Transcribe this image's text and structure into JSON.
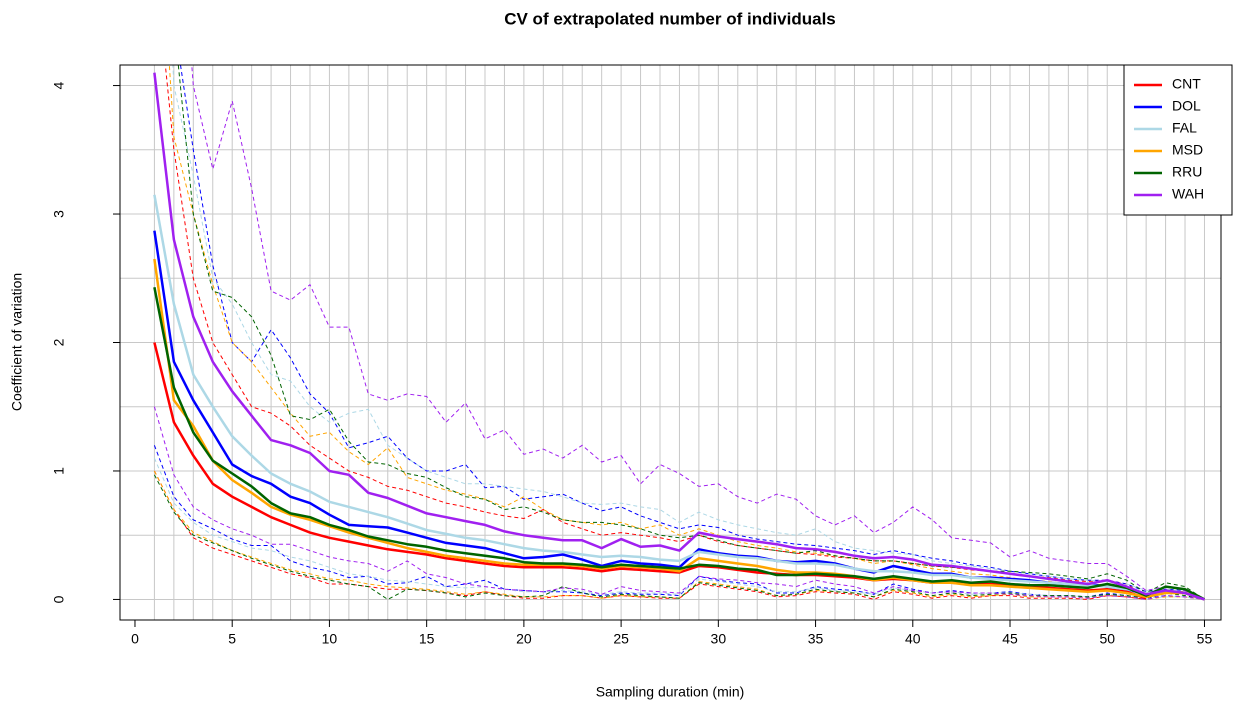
{
  "chart_data": {
    "type": "line",
    "title": "CV of extrapolated number of individuals",
    "x_label": "Sampling duration (min)",
    "y_label": "Coefficient of variation",
    "x": [
      1,
      2,
      3,
      4,
      5,
      6,
      7,
      8,
      9,
      10,
      11,
      12,
      13,
      14,
      15,
      16,
      17,
      18,
      19,
      20,
      21,
      22,
      23,
      24,
      25,
      26,
      27,
      28,
      29,
      30,
      31,
      32,
      33,
      34,
      35,
      36,
      37,
      38,
      39,
      40,
      41,
      42,
      43,
      44,
      45,
      46,
      47,
      48,
      49,
      50,
      51,
      52,
      53,
      54,
      55
    ],
    "xlim": [
      -0.77,
      55.85
    ],
    "ylim": [
      -0.16,
      4.16
    ],
    "xticks": [
      0,
      5,
      10,
      15,
      20,
      25,
      30,
      35,
      40,
      45,
      50,
      55
    ],
    "yticks": [
      0,
      1,
      2,
      3,
      4
    ],
    "ygrid": [
      0,
      0.5,
      1,
      1.5,
      2,
      2.5,
      3,
      3.5,
      4
    ],
    "grid": true,
    "legend": "topright",
    "series": [
      {
        "name": "CNT",
        "color": "#ff0000",
        "values": [
          2.0,
          1.38,
          1.12,
          0.9,
          0.8,
          0.72,
          0.64,
          0.58,
          0.52,
          0.48,
          0.45,
          0.42,
          0.39,
          0.37,
          0.35,
          0.32,
          0.3,
          0.28,
          0.26,
          0.25,
          0.25,
          0.25,
          0.24,
          0.22,
          0.24,
          0.23,
          0.22,
          0.21,
          0.26,
          0.25,
          0.23,
          0.21,
          0.2,
          0.19,
          0.19,
          0.18,
          0.17,
          0.15,
          0.16,
          0.15,
          0.13,
          0.13,
          0.12,
          0.12,
          0.11,
          0.1,
          0.09,
          0.08,
          0.07,
          0.08,
          0.06,
          0.01,
          null,
          null,
          null
        ],
        "upper": [
          5,
          3.5,
          2.5,
          2.0,
          1.75,
          1.5,
          1.45,
          1.35,
          1.2,
          1.1,
          1.0,
          0.95,
          0.88,
          0.85,
          0.8,
          0.75,
          0.72,
          0.68,
          0.65,
          0.63,
          0.7,
          0.6,
          0.55,
          0.5,
          0.52,
          0.5,
          0.48,
          0.45,
          0.5,
          0.45,
          0.42,
          0.4,
          0.38,
          0.36,
          0.35,
          0.33,
          0.32,
          0.3,
          0.3,
          0.28,
          0.26,
          0.25,
          0.23,
          0.22,
          0.2,
          0.18,
          0.17,
          0.15,
          0.14,
          0.15,
          0.12,
          0.02,
          null,
          null,
          null
        ],
        "lower": [
          1.0,
          0.7,
          0.48,
          0.4,
          0.35,
          0.3,
          0.25,
          0.2,
          0.17,
          0.12,
          0.12,
          0.1,
          0.08,
          0.08,
          0.07,
          0.05,
          0.03,
          0.06,
          0.03,
          0.01,
          0.01,
          0.03,
          0.03,
          0.01,
          0.03,
          0.02,
          0.01,
          0.01,
          0.12,
          0.1,
          0.08,
          0.06,
          0.02,
          0.03,
          0.06,
          0.05,
          0.04,
          0.0,
          0.06,
          0.04,
          0.01,
          0.03,
          0.01,
          0.03,
          0.03,
          0.01,
          0.01,
          0.01,
          0.0,
          0.03,
          0.02,
          0.0,
          null,
          null,
          null
        ]
      },
      {
        "name": "DOL",
        "color": "#0000ff",
        "values": [
          2.87,
          1.85,
          1.55,
          1.3,
          1.05,
          0.96,
          0.9,
          0.8,
          0.75,
          0.66,
          0.58,
          0.57,
          0.56,
          0.52,
          0.48,
          0.44,
          0.42,
          0.4,
          0.36,
          0.32,
          0.33,
          0.35,
          0.31,
          0.26,
          0.3,
          0.28,
          0.27,
          0.25,
          0.39,
          0.36,
          0.34,
          0.33,
          0.3,
          0.29,
          0.3,
          0.28,
          0.24,
          0.21,
          0.26,
          0.23,
          0.2,
          0.2,
          0.17,
          0.17,
          0.16,
          0.15,
          0.13,
          0.12,
          0.12,
          0.1,
          0.08,
          0.04,
          0.06,
          0.05,
          0.0
        ],
        "upper": [
          6,
          4.5,
          3.5,
          2.6,
          2.0,
          1.85,
          2.1,
          1.88,
          1.6,
          1.45,
          1.18,
          1.22,
          1.27,
          1.1,
          1.0,
          1.0,
          1.05,
          0.87,
          0.88,
          0.78,
          0.8,
          0.82,
          0.75,
          0.69,
          0.72,
          0.65,
          0.6,
          0.55,
          0.58,
          0.56,
          0.5,
          0.47,
          0.45,
          0.43,
          0.42,
          0.4,
          0.38,
          0.35,
          0.38,
          0.35,
          0.32,
          0.3,
          0.27,
          0.25,
          0.22,
          0.2,
          0.18,
          0.16,
          0.15,
          0.15,
          0.12,
          0.06,
          0.08,
          0.07,
          0.0
        ],
        "lower": [
          1.2,
          0.8,
          0.62,
          0.55,
          0.47,
          0.42,
          0.42,
          0.3,
          0.25,
          0.22,
          0.17,
          0.18,
          0.12,
          0.13,
          0.18,
          0.1,
          0.12,
          0.15,
          0.08,
          0.07,
          0.06,
          0.06,
          0.05,
          0.03,
          0.05,
          0.04,
          0.04,
          0.03,
          0.18,
          0.15,
          0.13,
          0.12,
          0.05,
          0.05,
          0.1,
          0.08,
          0.07,
          0.04,
          0.12,
          0.08,
          0.05,
          0.07,
          0.05,
          0.05,
          0.06,
          0.04,
          0.03,
          0.03,
          0.02,
          0.05,
          0.03,
          0.01,
          0.03,
          0.02,
          0.0
        ]
      },
      {
        "name": "FAL",
        "color": "#add8e6",
        "values": [
          3.15,
          2.3,
          1.75,
          1.5,
          1.27,
          1.12,
          0.98,
          0.9,
          0.84,
          0.76,
          0.72,
          0.68,
          0.64,
          0.59,
          0.54,
          0.51,
          0.48,
          0.46,
          0.43,
          0.4,
          0.38,
          0.37,
          0.35,
          0.33,
          0.34,
          0.33,
          0.31,
          0.3,
          0.37,
          0.35,
          0.33,
          0.32,
          0.3,
          0.28,
          0.28,
          0.27,
          0.24,
          0.22,
          0.22,
          0.21,
          0.19,
          0.19,
          0.17,
          0.16,
          0.15,
          0.14,
          0.13,
          0.12,
          0.11,
          0.1,
          0.08,
          0.05,
          0.06,
          0.05,
          0.0
        ],
        "upper": [
          7,
          4.0,
          3.3,
          2.5,
          2.3,
          2.0,
          1.75,
          1.7,
          1.5,
          1.38,
          1.45,
          1.48,
          1.2,
          1.1,
          1.0,
          0.95,
          0.9,
          0.9,
          0.88,
          0.86,
          0.84,
          0.8,
          0.75,
          0.74,
          0.75,
          0.72,
          0.7,
          0.6,
          0.68,
          0.62,
          0.58,
          0.55,
          0.52,
          0.5,
          0.55,
          0.45,
          0.4,
          0.38,
          0.36,
          0.35,
          0.3,
          0.28,
          0.26,
          0.24,
          0.22,
          0.2,
          0.18,
          0.16,
          0.15,
          0.14,
          0.12,
          0.07,
          0.08,
          0.06,
          0.0
        ],
        "lower": [
          1.1,
          0.75,
          0.6,
          0.5,
          0.45,
          0.4,
          0.38,
          0.33,
          0.3,
          0.25,
          0.2,
          0.18,
          0.15,
          0.14,
          0.12,
          0.1,
          0.09,
          0.1,
          0.08,
          0.06,
          0.06,
          0.07,
          0.06,
          0.04,
          0.06,
          0.05,
          0.05,
          0.04,
          0.16,
          0.14,
          0.12,
          0.1,
          0.06,
          0.06,
          0.09,
          0.07,
          0.06,
          0.04,
          0.09,
          0.07,
          0.05,
          0.06,
          0.04,
          0.05,
          0.05,
          0.04,
          0.03,
          0.03,
          0.02,
          0.04,
          0.03,
          0.01,
          0.02,
          0.02,
          0.0
        ]
      },
      {
        "name": "MSD",
        "color": "#ffa500",
        "values": [
          2.65,
          1.55,
          1.35,
          1.08,
          0.93,
          0.83,
          0.72,
          0.66,
          0.62,
          0.57,
          0.52,
          0.48,
          0.44,
          0.4,
          0.37,
          0.34,
          0.32,
          0.3,
          0.28,
          0.27,
          0.27,
          0.27,
          0.26,
          0.24,
          0.26,
          0.25,
          0.24,
          0.22,
          0.32,
          0.3,
          0.28,
          0.26,
          0.23,
          0.21,
          0.21,
          0.2,
          0.18,
          0.15,
          0.17,
          0.15,
          0.13,
          0.13,
          0.11,
          0.11,
          0.1,
          0.09,
          0.08,
          0.07,
          0.06,
          0.07,
          0.05,
          0.02,
          0.05,
          0.05,
          0.0
        ],
        "upper": [
          6,
          3.6,
          3.0,
          2.45,
          2.0,
          1.85,
          1.65,
          1.45,
          1.27,
          1.3,
          1.15,
          1.05,
          1.18,
          0.95,
          0.9,
          0.85,
          0.82,
          0.78,
          0.72,
          0.8,
          0.7,
          0.62,
          0.6,
          0.58,
          0.6,
          0.55,
          0.58,
          0.5,
          0.55,
          0.5,
          0.45,
          0.42,
          0.4,
          0.37,
          0.36,
          0.34,
          0.32,
          0.28,
          0.3,
          0.27,
          0.24,
          0.22,
          0.2,
          0.19,
          0.17,
          0.15,
          0.14,
          0.12,
          0.11,
          0.12,
          0.09,
          0.04,
          0.07,
          0.06,
          0.0
        ],
        "lower": [
          1.0,
          0.7,
          0.52,
          0.45,
          0.38,
          0.33,
          0.28,
          0.23,
          0.2,
          0.16,
          0.15,
          0.12,
          0.1,
          0.09,
          0.08,
          0.06,
          0.04,
          0.06,
          0.04,
          0.02,
          0.02,
          0.03,
          0.03,
          0.01,
          0.03,
          0.02,
          0.02,
          0.01,
          0.14,
          0.12,
          0.1,
          0.08,
          0.03,
          0.04,
          0.07,
          0.06,
          0.05,
          0.02,
          0.07,
          0.05,
          0.02,
          0.04,
          0.02,
          0.03,
          0.04,
          0.02,
          0.02,
          0.02,
          0.01,
          0.03,
          0.02,
          0.0,
          0.02,
          0.02,
          0.0
        ]
      },
      {
        "name": "RRU",
        "color": "#006400",
        "values": [
          2.43,
          1.65,
          1.3,
          1.08,
          0.98,
          0.88,
          0.75,
          0.67,
          0.64,
          0.58,
          0.54,
          0.49,
          0.46,
          0.43,
          0.41,
          0.38,
          0.36,
          0.34,
          0.32,
          0.29,
          0.28,
          0.28,
          0.27,
          0.25,
          0.27,
          0.26,
          0.25,
          0.24,
          0.27,
          0.26,
          0.24,
          0.23,
          0.19,
          0.19,
          0.2,
          0.19,
          0.18,
          0.16,
          0.18,
          0.16,
          0.14,
          0.15,
          0.13,
          0.14,
          0.12,
          0.11,
          0.11,
          0.1,
          0.09,
          0.12,
          0.09,
          0.03,
          0.1,
          0.08,
          0.0
        ],
        "upper": [
          6,
          4.5,
          3.0,
          2.4,
          2.35,
          2.2,
          1.9,
          1.43,
          1.4,
          1.48,
          1.23,
          1.07,
          1.05,
          0.98,
          0.95,
          0.87,
          0.8,
          0.78,
          0.7,
          0.72,
          0.68,
          0.62,
          0.6,
          0.6,
          0.58,
          0.55,
          0.5,
          0.48,
          0.5,
          0.46,
          0.42,
          0.4,
          0.38,
          0.36,
          0.38,
          0.34,
          0.32,
          0.3,
          0.3,
          0.28,
          0.26,
          0.25,
          0.24,
          0.22,
          0.22,
          0.21,
          0.2,
          0.18,
          0.16,
          0.2,
          0.15,
          0.05,
          0.13,
          0.1,
          0.0
        ],
        "lower": [
          0.97,
          0.68,
          0.5,
          0.44,
          0.38,
          0.32,
          0.27,
          0.22,
          0.18,
          0.15,
          0.12,
          0.1,
          0.0,
          0.08,
          0.07,
          0.05,
          0.02,
          0.05,
          0.03,
          0.02,
          0.03,
          0.1,
          0.05,
          0.02,
          0.04,
          0.03,
          0.02,
          0.01,
          0.13,
          0.11,
          0.09,
          0.07,
          0.03,
          0.04,
          0.08,
          0.06,
          0.05,
          0.02,
          0.08,
          0.06,
          0.03,
          0.05,
          0.03,
          0.04,
          0.05,
          0.03,
          0.03,
          0.03,
          0.02,
          0.04,
          0.03,
          0.01,
          0.05,
          0.03,
          0.0
        ]
      },
      {
        "name": "WAH",
        "color": "#a020f0",
        "values": [
          4.1,
          2.8,
          2.2,
          1.85,
          1.62,
          1.43,
          1.24,
          1.2,
          1.14,
          1.0,
          0.97,
          0.83,
          0.79,
          0.73,
          0.67,
          0.64,
          0.61,
          0.58,
          0.53,
          0.5,
          0.48,
          0.46,
          0.46,
          0.4,
          0.47,
          0.41,
          0.42,
          0.38,
          0.52,
          0.49,
          0.47,
          0.45,
          0.43,
          0.4,
          0.39,
          0.37,
          0.34,
          0.32,
          0.33,
          0.31,
          0.27,
          0.26,
          0.24,
          0.22,
          0.2,
          0.18,
          0.16,
          0.14,
          0.12,
          0.15,
          0.1,
          0.04,
          0.07,
          0.05,
          0.0
        ],
        "upper": [
          8,
          6,
          4.0,
          3.35,
          3.88,
          3.2,
          2.4,
          2.33,
          2.45,
          2.12,
          2.12,
          1.6,
          1.55,
          1.6,
          1.58,
          1.38,
          1.53,
          1.25,
          1.32,
          1.13,
          1.17,
          1.1,
          1.2,
          1.07,
          1.12,
          0.9,
          1.05,
          0.98,
          0.88,
          0.9,
          0.8,
          0.75,
          0.82,
          0.78,
          0.65,
          0.58,
          0.65,
          0.52,
          0.6,
          0.72,
          0.62,
          0.48,
          0.46,
          0.44,
          0.33,
          0.38,
          0.32,
          0.3,
          0.28,
          0.28,
          0.18,
          0.07,
          0.1,
          0.07,
          0.0
        ],
        "lower": [
          1.5,
          0.97,
          0.72,
          0.62,
          0.55,
          0.5,
          0.43,
          0.43,
          0.38,
          0.33,
          0.3,
          0.28,
          0.22,
          0.3,
          0.2,
          0.17,
          0.12,
          0.1,
          0.08,
          0.07,
          0.06,
          0.09,
          0.08,
          0.04,
          0.1,
          0.07,
          0.06,
          0.05,
          0.18,
          0.16,
          0.15,
          0.13,
          0.12,
          0.1,
          0.15,
          0.12,
          0.1,
          0.05,
          0.1,
          0.07,
          0.05,
          0.06,
          0.05,
          0.05,
          0.04,
          0.03,
          0.02,
          0.02,
          0.01,
          0.03,
          0.02,
          0.0,
          0.03,
          0.02,
          0.0
        ]
      }
    ]
  }
}
